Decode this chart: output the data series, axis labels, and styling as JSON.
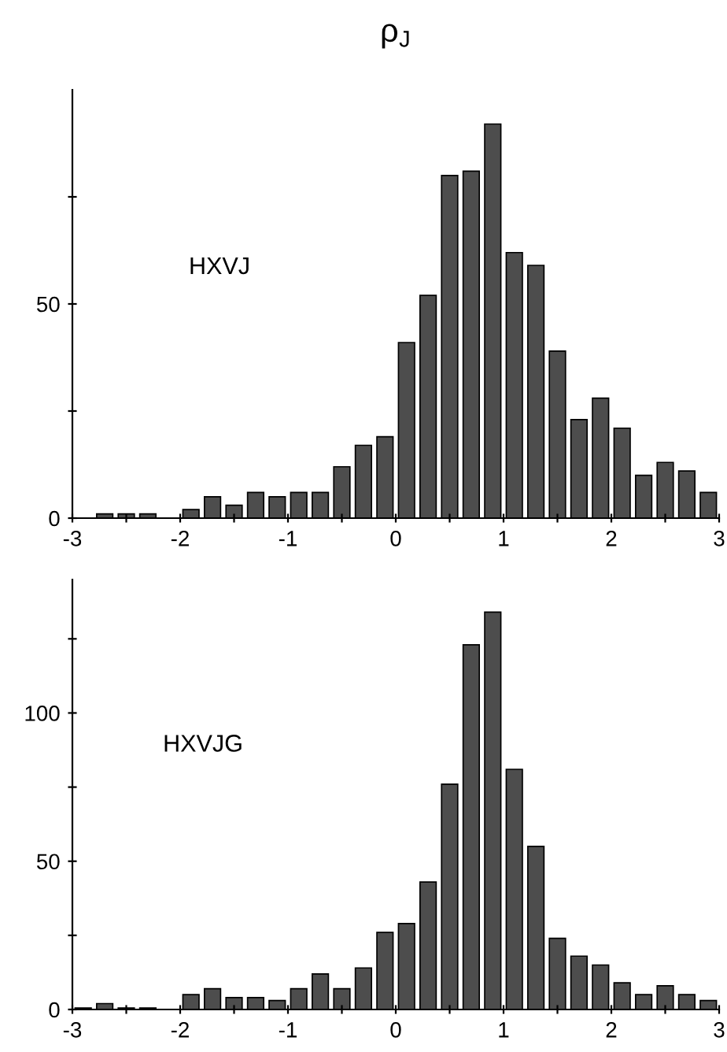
{
  "chart_data": [
    {
      "type": "histogram",
      "title": "ρ$_{J}$",
      "annotations": [
        "HXVJ"
      ],
      "color": "#4d4d4d",
      "bins": [
        -3,
        -2.8,
        -2.6,
        -2.4,
        -2.2,
        -2,
        -1.8,
        -1.6,
        -1.4,
        -1.2,
        -1,
        -0.8,
        -0.6,
        -0.4,
        -0.2,
        0,
        0.2,
        0.4,
        0.6,
        0.8,
        1,
        1.2,
        1.4,
        1.6,
        1.8,
        2,
        2.2,
        2.4,
        2.6,
        2.8,
        3
      ],
      "values": [
        0,
        1,
        1,
        1,
        0,
        2,
        5,
        3,
        6,
        5,
        6,
        6,
        12,
        17,
        19,
        41,
        52,
        80,
        81,
        92,
        62,
        59,
        39,
        23,
        28,
        21,
        10,
        13,
        11,
        6
      ],
      "xlim": [
        -3,
        3
      ],
      "xticks": [
        -3,
        {
          "value": -2.5,
          "label": null
        },
        -2,
        {
          "value": -1.5,
          "label": null
        },
        -1,
        {
          "value": -0.5,
          "label": null
        },
        0,
        {
          "value": 0.5,
          "label": null
        },
        1,
        {
          "value": 1.5,
          "label": null
        },
        2,
        {
          "value": 2.5,
          "label": null
        },
        3
      ],
      "ylim": [
        0,
        100
      ],
      "yticks": [
        0,
        {
          "value": 25,
          "label": null
        },
        50,
        {
          "value": 75,
          "label": null
        }
      ],
      "grid": false,
      "legend": false
    },
    {
      "type": "histogram",
      "annotations": [
        "HXVJG"
      ],
      "color": "#4d4d4d",
      "bins": [
        -3,
        -2.8,
        -2.6,
        -2.4,
        -2.2,
        -2,
        -1.8,
        -1.6,
        -1.4,
        -1.2,
        -1,
        -0.8,
        -0.6,
        -0.4,
        -0.2,
        0,
        0.2,
        0.4,
        0.6,
        0.8,
        1,
        1.2,
        1.4,
        1.6,
        1.8,
        2,
        2.2,
        2.4,
        2.6,
        2.8,
        3
      ],
      "values": [
        0.5,
        2,
        0.5,
        0.5,
        0,
        5,
        7,
        4,
        4,
        3,
        7,
        12,
        7,
        14,
        26,
        29,
        43,
        76,
        123,
        134,
        81,
        55,
        24,
        18,
        15,
        9,
        5,
        8,
        5,
        3
      ],
      "xlim": [
        -3,
        3
      ],
      "xticks": [
        -3,
        {
          "value": -2.5,
          "label": null
        },
        -2,
        {
          "value": -1.5,
          "label": null
        },
        -1,
        {
          "value": -0.5,
          "label": null
        },
        0,
        {
          "value": 0.5,
          "label": null
        },
        1,
        {
          "value": 1.5,
          "label": null
        },
        2,
        {
          "value": 2.5,
          "label": null
        },
        3
      ],
      "ylim": [
        0,
        145
      ],
      "yticks": [
        0,
        {
          "value": 25,
          "label": null
        },
        50,
        {
          "value": 75,
          "label": null
        },
        100,
        {
          "value": 125,
          "label": null
        }
      ],
      "grid": false,
      "legend": false
    }
  ]
}
